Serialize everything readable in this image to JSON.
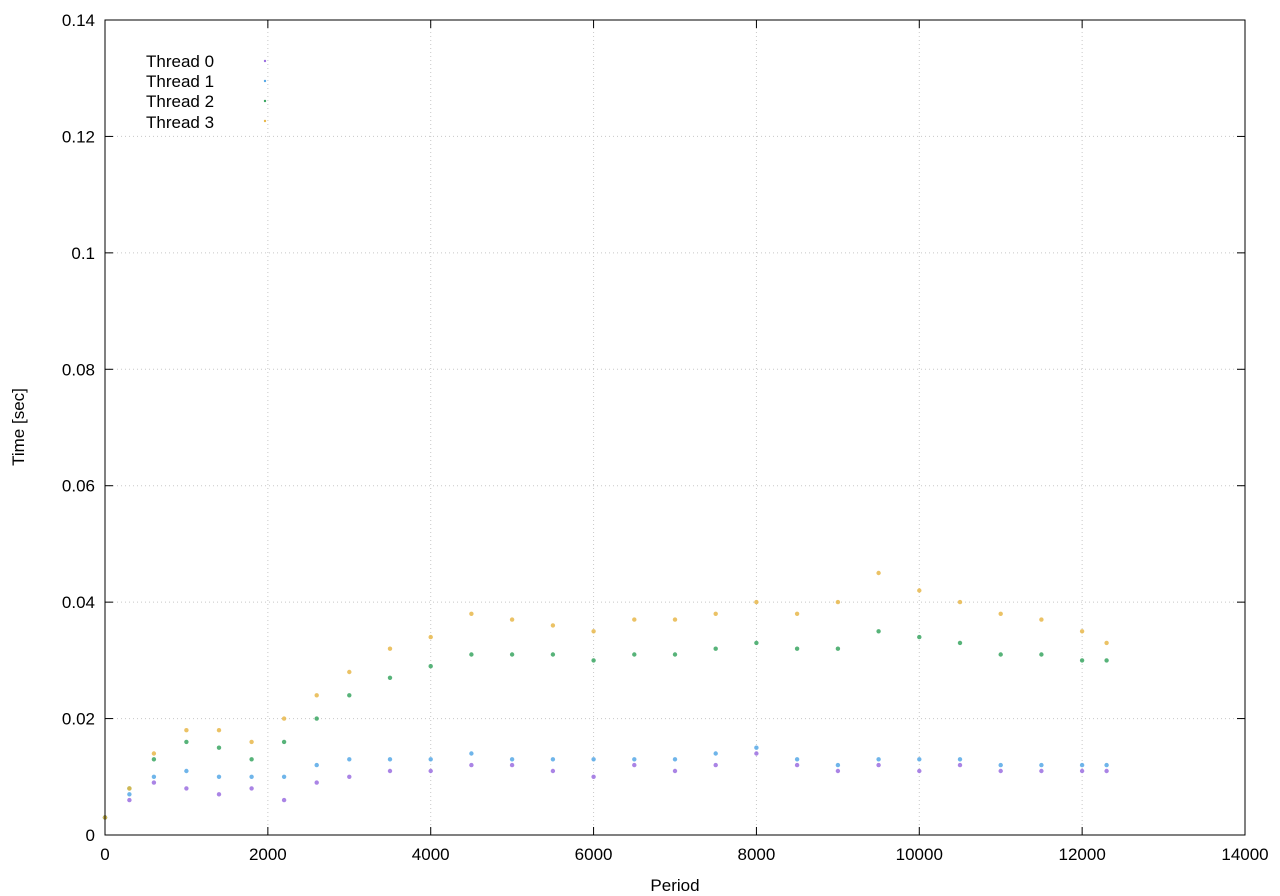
{
  "chart_data": {
    "type": "scatter",
    "title": "",
    "xlabel": "Period",
    "ylabel": "Time [sec]",
    "xlim": [
      0,
      14000
    ],
    "ylim": [
      0,
      0.14
    ],
    "x_ticks": [
      "0",
      "2000",
      "4000",
      "6000",
      "8000",
      "10000",
      "12000",
      "14000"
    ],
    "y_ticks": [
      "0",
      "0.02",
      "0.04",
      "0.06",
      "0.08",
      "0.1",
      "0.12",
      "0.14"
    ],
    "grid": true,
    "legend_position": "top-left",
    "series": [
      {
        "name": "Thread 0",
        "color": "#9b6fe0",
        "marker": "dot",
        "x": [
          0,
          300,
          600,
          1000,
          1400,
          1800,
          2200,
          2600,
          3000,
          3500,
          4000,
          4500,
          5000,
          5500,
          6000,
          6500,
          7000,
          7500,
          8000,
          8500,
          9000,
          9500,
          10000,
          10500,
          11000,
          11500,
          12000,
          12300
        ],
        "y": [
          0.003,
          0.006,
          0.009,
          0.008,
          0.007,
          0.008,
          0.006,
          0.009,
          0.01,
          0.011,
          0.011,
          0.012,
          0.012,
          0.011,
          0.01,
          0.012,
          0.011,
          0.012,
          0.014,
          0.012,
          0.011,
          0.012,
          0.011,
          0.012,
          0.011,
          0.011,
          0.011,
          0.011
        ]
      },
      {
        "name": "Thread 1",
        "color": "#56a8e6",
        "marker": "dot",
        "x": [
          0,
          300,
          600,
          1000,
          1400,
          1800,
          2200,
          2600,
          3000,
          3500,
          4000,
          4500,
          5000,
          5500,
          6000,
          6500,
          7000,
          7500,
          8000,
          8500,
          9000,
          9500,
          10000,
          10500,
          11000,
          11500,
          12000,
          12300
        ],
        "y": [
          0.003,
          0.007,
          0.01,
          0.011,
          0.01,
          0.01,
          0.01,
          0.012,
          0.013,
          0.013,
          0.013,
          0.014,
          0.013,
          0.013,
          0.013,
          0.013,
          0.013,
          0.014,
          0.015,
          0.013,
          0.012,
          0.013,
          0.013,
          0.013,
          0.012,
          0.012,
          0.012,
          0.012
        ]
      },
      {
        "name": "Thread 2",
        "color": "#3aa661",
        "marker": "dot",
        "x": [
          0,
          300,
          600,
          1000,
          1400,
          1800,
          2200,
          2600,
          3000,
          3500,
          4000,
          4500,
          5000,
          5500,
          6000,
          6500,
          7000,
          7500,
          8000,
          8500,
          9000,
          9500,
          10000,
          10500,
          11000,
          11500,
          12000,
          12300
        ],
        "y": [
          0.003,
          0.008,
          0.013,
          0.016,
          0.015,
          0.013,
          0.016,
          0.02,
          0.024,
          0.027,
          0.029,
          0.031,
          0.031,
          0.031,
          0.03,
          0.031,
          0.031,
          0.032,
          0.033,
          0.032,
          0.032,
          0.035,
          0.034,
          0.033,
          0.031,
          0.031,
          0.03,
          0.03
        ]
      },
      {
        "name": "Thread 3",
        "color": "#e8b74a",
        "marker": "dot",
        "x": [
          0,
          300,
          600,
          1000,
          1400,
          1800,
          2200,
          2600,
          3000,
          3500,
          4000,
          4500,
          5000,
          5500,
          6000,
          6500,
          7000,
          7500,
          8000,
          8500,
          9000,
          9500,
          10000,
          10500,
          11000,
          11500,
          12000,
          12300
        ],
        "y": [
          0.003,
          0.008,
          0.014,
          0.018,
          0.018,
          0.016,
          0.02,
          0.024,
          0.028,
          0.032,
          0.034,
          0.038,
          0.037,
          0.036,
          0.035,
          0.037,
          0.037,
          0.038,
          0.04,
          0.038,
          0.04,
          0.045,
          0.042,
          0.04,
          0.038,
          0.037,
          0.035,
          0.033
        ]
      }
    ]
  }
}
